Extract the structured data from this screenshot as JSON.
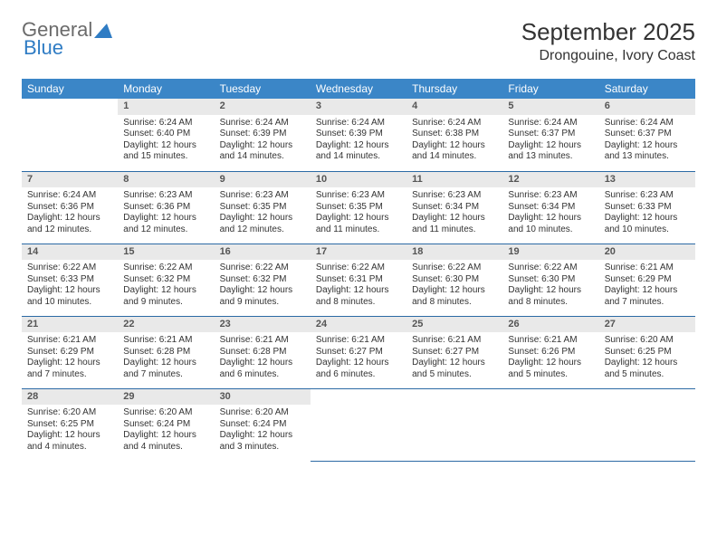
{
  "brand": {
    "text1": "General",
    "text2": "Blue"
  },
  "title": "September 2025",
  "location": "Drongouine, Ivory Coast",
  "columns": [
    "Sunday",
    "Monday",
    "Tuesday",
    "Wednesday",
    "Thursday",
    "Friday",
    "Saturday"
  ],
  "colors": {
    "header_bg": "#3b86c7",
    "header_text": "#ffffff",
    "daynum_bg": "#e9e9e9",
    "rule": "#2c6aa5",
    "brand_gray": "#6b6b6b",
    "brand_blue": "#2f7cc4"
  },
  "weeks": [
    [
      {
        "empty": true
      },
      {
        "n": "1",
        "sr": "Sunrise: 6:24 AM",
        "ss": "Sunset: 6:40 PM",
        "d1": "Daylight: 12 hours",
        "d2": "and 15 minutes."
      },
      {
        "n": "2",
        "sr": "Sunrise: 6:24 AM",
        "ss": "Sunset: 6:39 PM",
        "d1": "Daylight: 12 hours",
        "d2": "and 14 minutes."
      },
      {
        "n": "3",
        "sr": "Sunrise: 6:24 AM",
        "ss": "Sunset: 6:39 PM",
        "d1": "Daylight: 12 hours",
        "d2": "and 14 minutes."
      },
      {
        "n": "4",
        "sr": "Sunrise: 6:24 AM",
        "ss": "Sunset: 6:38 PM",
        "d1": "Daylight: 12 hours",
        "d2": "and 14 minutes."
      },
      {
        "n": "5",
        "sr": "Sunrise: 6:24 AM",
        "ss": "Sunset: 6:37 PM",
        "d1": "Daylight: 12 hours",
        "d2": "and 13 minutes."
      },
      {
        "n": "6",
        "sr": "Sunrise: 6:24 AM",
        "ss": "Sunset: 6:37 PM",
        "d1": "Daylight: 12 hours",
        "d2": "and 13 minutes."
      }
    ],
    [
      {
        "n": "7",
        "sr": "Sunrise: 6:24 AM",
        "ss": "Sunset: 6:36 PM",
        "d1": "Daylight: 12 hours",
        "d2": "and 12 minutes."
      },
      {
        "n": "8",
        "sr": "Sunrise: 6:23 AM",
        "ss": "Sunset: 6:36 PM",
        "d1": "Daylight: 12 hours",
        "d2": "and 12 minutes."
      },
      {
        "n": "9",
        "sr": "Sunrise: 6:23 AM",
        "ss": "Sunset: 6:35 PM",
        "d1": "Daylight: 12 hours",
        "d2": "and 12 minutes."
      },
      {
        "n": "10",
        "sr": "Sunrise: 6:23 AM",
        "ss": "Sunset: 6:35 PM",
        "d1": "Daylight: 12 hours",
        "d2": "and 11 minutes."
      },
      {
        "n": "11",
        "sr": "Sunrise: 6:23 AM",
        "ss": "Sunset: 6:34 PM",
        "d1": "Daylight: 12 hours",
        "d2": "and 11 minutes."
      },
      {
        "n": "12",
        "sr": "Sunrise: 6:23 AM",
        "ss": "Sunset: 6:34 PM",
        "d1": "Daylight: 12 hours",
        "d2": "and 10 minutes."
      },
      {
        "n": "13",
        "sr": "Sunrise: 6:23 AM",
        "ss": "Sunset: 6:33 PM",
        "d1": "Daylight: 12 hours",
        "d2": "and 10 minutes."
      }
    ],
    [
      {
        "n": "14",
        "sr": "Sunrise: 6:22 AM",
        "ss": "Sunset: 6:33 PM",
        "d1": "Daylight: 12 hours",
        "d2": "and 10 minutes."
      },
      {
        "n": "15",
        "sr": "Sunrise: 6:22 AM",
        "ss": "Sunset: 6:32 PM",
        "d1": "Daylight: 12 hours",
        "d2": "and 9 minutes."
      },
      {
        "n": "16",
        "sr": "Sunrise: 6:22 AM",
        "ss": "Sunset: 6:32 PM",
        "d1": "Daylight: 12 hours",
        "d2": "and 9 minutes."
      },
      {
        "n": "17",
        "sr": "Sunrise: 6:22 AM",
        "ss": "Sunset: 6:31 PM",
        "d1": "Daylight: 12 hours",
        "d2": "and 8 minutes."
      },
      {
        "n": "18",
        "sr": "Sunrise: 6:22 AM",
        "ss": "Sunset: 6:30 PM",
        "d1": "Daylight: 12 hours",
        "d2": "and 8 minutes."
      },
      {
        "n": "19",
        "sr": "Sunrise: 6:22 AM",
        "ss": "Sunset: 6:30 PM",
        "d1": "Daylight: 12 hours",
        "d2": "and 8 minutes."
      },
      {
        "n": "20",
        "sr": "Sunrise: 6:21 AM",
        "ss": "Sunset: 6:29 PM",
        "d1": "Daylight: 12 hours",
        "d2": "and 7 minutes."
      }
    ],
    [
      {
        "n": "21",
        "sr": "Sunrise: 6:21 AM",
        "ss": "Sunset: 6:29 PM",
        "d1": "Daylight: 12 hours",
        "d2": "and 7 minutes."
      },
      {
        "n": "22",
        "sr": "Sunrise: 6:21 AM",
        "ss": "Sunset: 6:28 PM",
        "d1": "Daylight: 12 hours",
        "d2": "and 7 minutes."
      },
      {
        "n": "23",
        "sr": "Sunrise: 6:21 AM",
        "ss": "Sunset: 6:28 PM",
        "d1": "Daylight: 12 hours",
        "d2": "and 6 minutes."
      },
      {
        "n": "24",
        "sr": "Sunrise: 6:21 AM",
        "ss": "Sunset: 6:27 PM",
        "d1": "Daylight: 12 hours",
        "d2": "and 6 minutes."
      },
      {
        "n": "25",
        "sr": "Sunrise: 6:21 AM",
        "ss": "Sunset: 6:27 PM",
        "d1": "Daylight: 12 hours",
        "d2": "and 5 minutes."
      },
      {
        "n": "26",
        "sr": "Sunrise: 6:21 AM",
        "ss": "Sunset: 6:26 PM",
        "d1": "Daylight: 12 hours",
        "d2": "and 5 minutes."
      },
      {
        "n": "27",
        "sr": "Sunrise: 6:20 AM",
        "ss": "Sunset: 6:25 PM",
        "d1": "Daylight: 12 hours",
        "d2": "and 5 minutes."
      }
    ],
    [
      {
        "n": "28",
        "sr": "Sunrise: 6:20 AM",
        "ss": "Sunset: 6:25 PM",
        "d1": "Daylight: 12 hours",
        "d2": "and 4 minutes."
      },
      {
        "n": "29",
        "sr": "Sunrise: 6:20 AM",
        "ss": "Sunset: 6:24 PM",
        "d1": "Daylight: 12 hours",
        "d2": "and 4 minutes."
      },
      {
        "n": "30",
        "sr": "Sunrise: 6:20 AM",
        "ss": "Sunset: 6:24 PM",
        "d1": "Daylight: 12 hours",
        "d2": "and 3 minutes."
      },
      {
        "empty": true
      },
      {
        "empty": true
      },
      {
        "empty": true
      },
      {
        "empty": true
      }
    ]
  ]
}
